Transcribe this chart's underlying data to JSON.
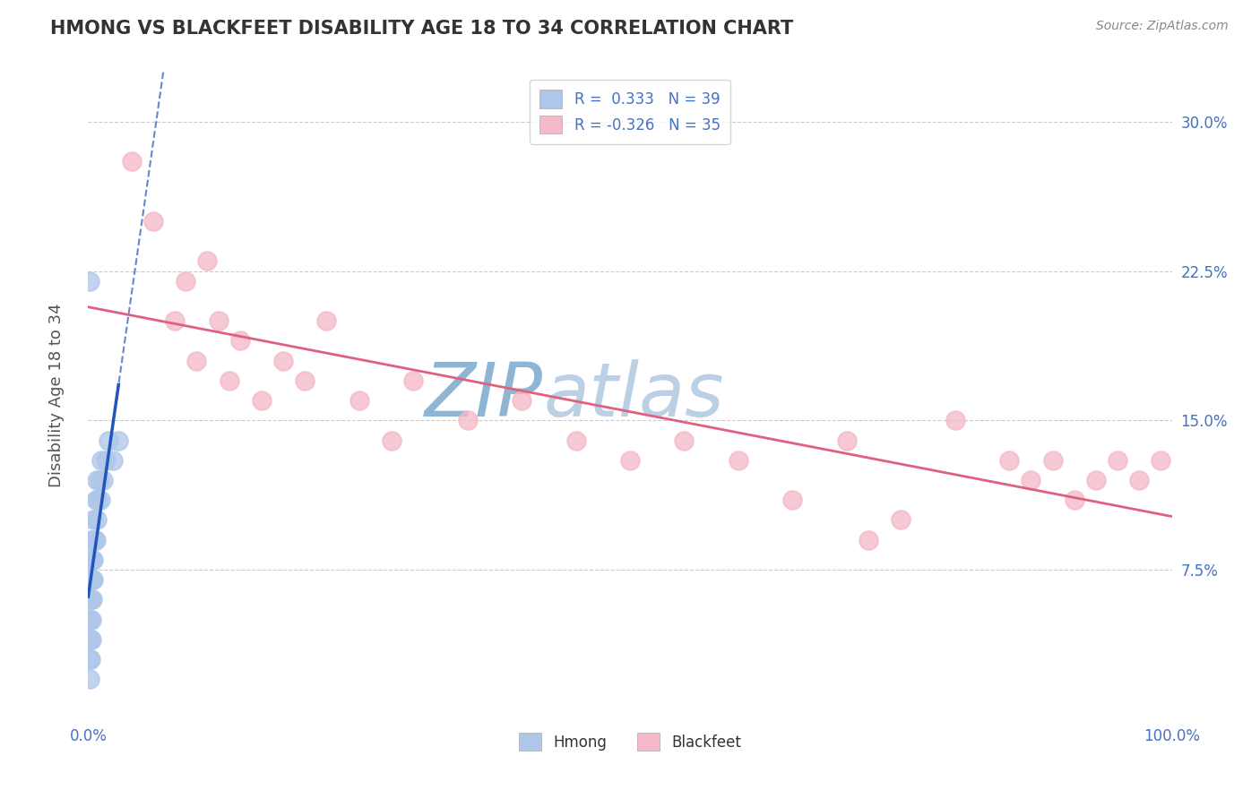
{
  "title": "HMONG VS BLACKFEET DISABILITY AGE 18 TO 34 CORRELATION CHART",
  "source": "Source: ZipAtlas.com",
  "ylabel": "Disability Age 18 to 34",
  "xlim": [
    0.0,
    1.0
  ],
  "ylim": [
    0.0,
    0.325
  ],
  "xticks": [
    0.0,
    0.25,
    0.5,
    0.75,
    1.0
  ],
  "xticklabels": [
    "0.0%",
    "",
    "",
    "",
    "100.0%"
  ],
  "yticks": [
    0.0,
    0.075,
    0.15,
    0.225,
    0.3
  ],
  "yticklabels": [
    "",
    "7.5%",
    "15.0%",
    "22.5%",
    "30.0%"
  ],
  "hmong_R": 0.333,
  "hmong_N": 39,
  "blackfeet_R": -0.326,
  "blackfeet_N": 35,
  "background_color": "#ffffff",
  "grid_color": "#cccccc",
  "hmong_color": "#aec6e8",
  "blackfeet_color": "#f4b8c8",
  "hmong_line_color": "#2255bb",
  "blackfeet_line_color": "#e06080",
  "watermark_left_color": "#7aa8cc",
  "watermark_right_color": "#b0c8e0",
  "title_color": "#333333",
  "legend_text_color": "#4472c4",
  "tick_color": "#4472c4",
  "hmong_x": [
    0.001,
    0.001,
    0.001,
    0.001,
    0.001,
    0.002,
    0.002,
    0.002,
    0.002,
    0.002,
    0.002,
    0.003,
    0.003,
    0.003,
    0.003,
    0.003,
    0.003,
    0.004,
    0.004,
    0.004,
    0.004,
    0.005,
    0.005,
    0.005,
    0.006,
    0.007,
    0.007,
    0.008,
    0.008,
    0.009,
    0.01,
    0.011,
    0.012,
    0.014,
    0.016,
    0.019,
    0.023,
    0.028,
    0.001
  ],
  "hmong_y": [
    0.02,
    0.03,
    0.04,
    0.05,
    0.06,
    0.03,
    0.04,
    0.05,
    0.06,
    0.07,
    0.08,
    0.04,
    0.05,
    0.06,
    0.07,
    0.08,
    0.09,
    0.06,
    0.07,
    0.08,
    0.09,
    0.07,
    0.08,
    0.1,
    0.09,
    0.09,
    0.11,
    0.1,
    0.12,
    0.11,
    0.12,
    0.11,
    0.13,
    0.12,
    0.13,
    0.14,
    0.13,
    0.14,
    0.22
  ],
  "blackfeet_x": [
    0.04,
    0.06,
    0.08,
    0.09,
    0.1,
    0.11,
    0.12,
    0.13,
    0.14,
    0.16,
    0.18,
    0.2,
    0.22,
    0.25,
    0.28,
    0.3,
    0.35,
    0.4,
    0.45,
    0.5,
    0.55,
    0.6,
    0.65,
    0.7,
    0.75,
    0.8,
    0.85,
    0.87,
    0.89,
    0.91,
    0.93,
    0.95,
    0.97,
    0.99,
    0.72
  ],
  "blackfeet_y": [
    0.28,
    0.25,
    0.2,
    0.22,
    0.18,
    0.23,
    0.2,
    0.17,
    0.19,
    0.16,
    0.18,
    0.17,
    0.2,
    0.16,
    0.14,
    0.17,
    0.15,
    0.16,
    0.14,
    0.13,
    0.14,
    0.13,
    0.11,
    0.14,
    0.1,
    0.15,
    0.13,
    0.12,
    0.13,
    0.11,
    0.12,
    0.13,
    0.12,
    0.13,
    0.09
  ]
}
